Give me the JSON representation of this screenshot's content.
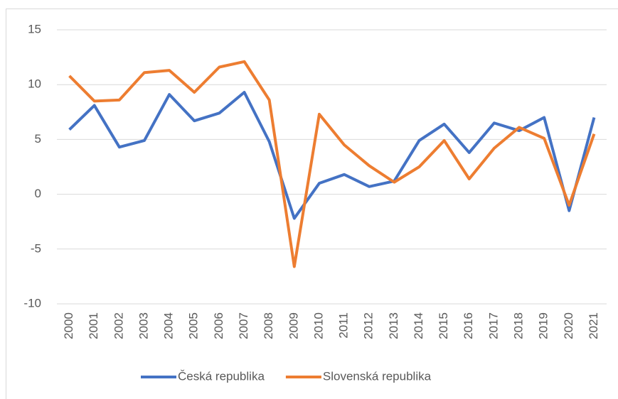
{
  "chart_data": {
    "type": "line",
    "categories": [
      "2000",
      "2001",
      "2002",
      "2003",
      "2004",
      "2005",
      "2006",
      "2007",
      "2008",
      "2009",
      "2010",
      "2011",
      "2012",
      "2013",
      "2014",
      "2015",
      "2016",
      "2017",
      "2018",
      "2019",
      "2020",
      "2021"
    ],
    "series": [
      {
        "name": "Česká republika",
        "color": "#4472c4",
        "values": [
          5.9,
          8.1,
          4.3,
          4.9,
          9.1,
          6.7,
          7.4,
          9.3,
          4.8,
          -2.2,
          1.0,
          1.8,
          0.7,
          1.2,
          4.9,
          6.4,
          3.8,
          6.5,
          5.8,
          7.0,
          -1.5,
          7.0
        ]
      },
      {
        "name": "Slovenská republika",
        "color": "#ed7d31",
        "values": [
          10.8,
          8.5,
          8.6,
          11.1,
          11.3,
          9.3,
          11.6,
          12.1,
          8.6,
          -6.6,
          7.3,
          4.5,
          2.6,
          1.1,
          2.5,
          4.9,
          1.4,
          4.2,
          6.1,
          5.1,
          -1.0,
          5.5
        ]
      }
    ],
    "ylim": [
      -10,
      15
    ],
    "yticks": [
      -10,
      -5,
      0,
      5,
      10,
      15
    ],
    "grid": true,
    "legend": "bottom"
  }
}
